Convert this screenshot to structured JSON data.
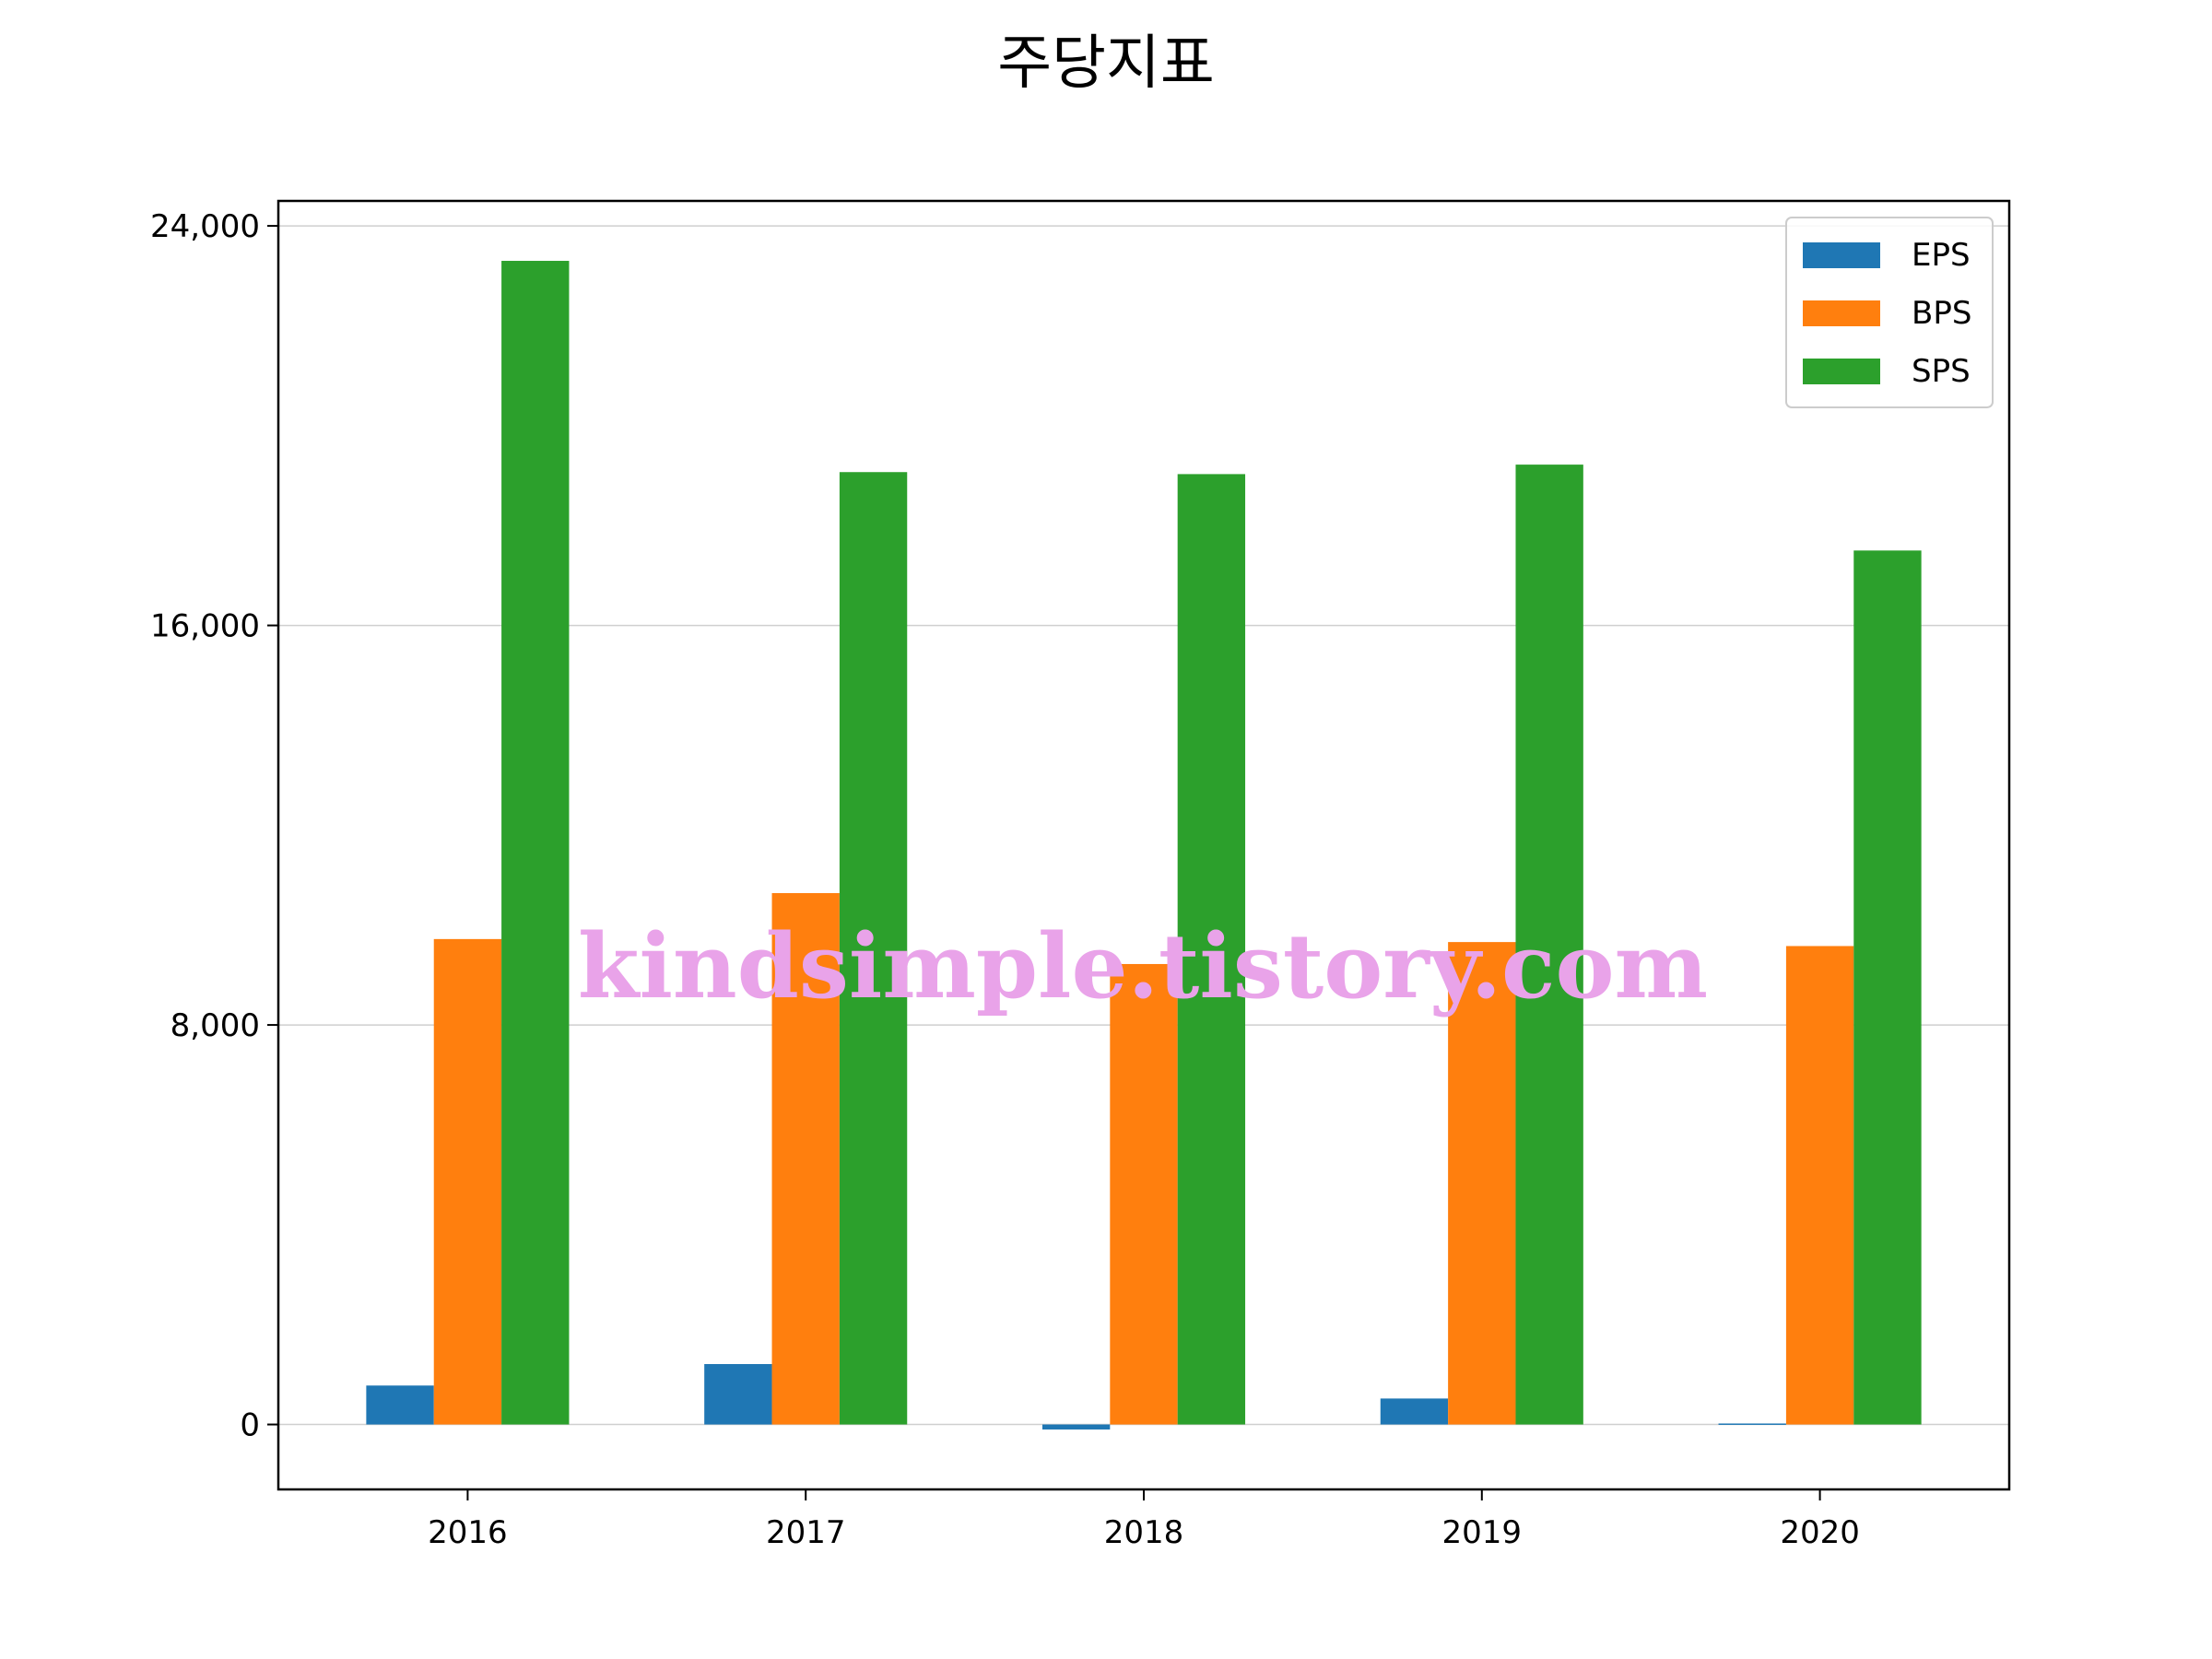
{
  "chart_data": {
    "type": "bar",
    "title": "주당지표",
    "categories": [
      "2016",
      "2017",
      "2018",
      "2019",
      "2020"
    ],
    "series": [
      {
        "name": "EPS",
        "values": [
          780,
          1210,
          -100,
          520,
          20
        ]
      },
      {
        "name": "BPS",
        "values": [
          9720,
          10640,
          9220,
          9660,
          9580
        ]
      },
      {
        "name": "SPS",
        "values": [
          23300,
          19070,
          19030,
          19220,
          17500
        ]
      }
    ],
    "ylim": [
      -1300,
      24500
    ],
    "yticks": [
      0,
      8000,
      16000,
      24000
    ],
    "ytick_labels": [
      "0",
      "8,000",
      "16,000",
      "24,000"
    ],
    "grid": "y",
    "legend": "top-right",
    "colors": [
      "#1f77b4",
      "#ff7f0e",
      "#2ca02c"
    ],
    "watermark": "kindsimple.tistory.com"
  }
}
